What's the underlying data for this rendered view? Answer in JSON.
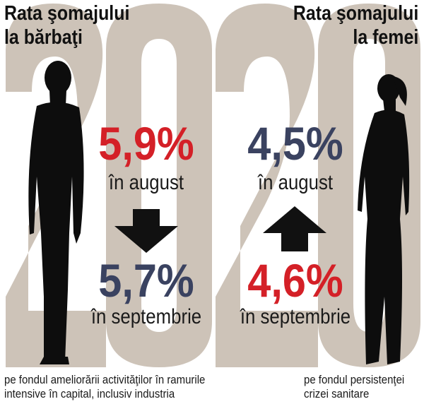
{
  "colors": {
    "background": "#ffffff",
    "year_backdrop": "#cdc3b8",
    "silhouette": "#0d0d0d",
    "red": "#d42027",
    "navy": "#3a4260",
    "arrow": "#111111"
  },
  "backdrop_year": "2020",
  "men": {
    "title_line1": "Rata şomajului",
    "title_line2": "la bărbaţi",
    "value_august": "5,9%",
    "label_august": "în august",
    "trend": "down",
    "value_september": "5,7%",
    "label_september": "în septembrie",
    "note_line1": "pe fondul ameliorării activităţilor în ramurile",
    "note_line2": "intensive în capital, inclusiv industria"
  },
  "women": {
    "title_line1": "Rata şomajului",
    "title_line2": "la femei",
    "value_august": "4,5%",
    "label_august": "în august",
    "trend": "up",
    "value_september": "4,6%",
    "label_september": "în septembrie",
    "note_line1": "pe fondul persistenţei",
    "note_line2": "crizei sanitare"
  }
}
